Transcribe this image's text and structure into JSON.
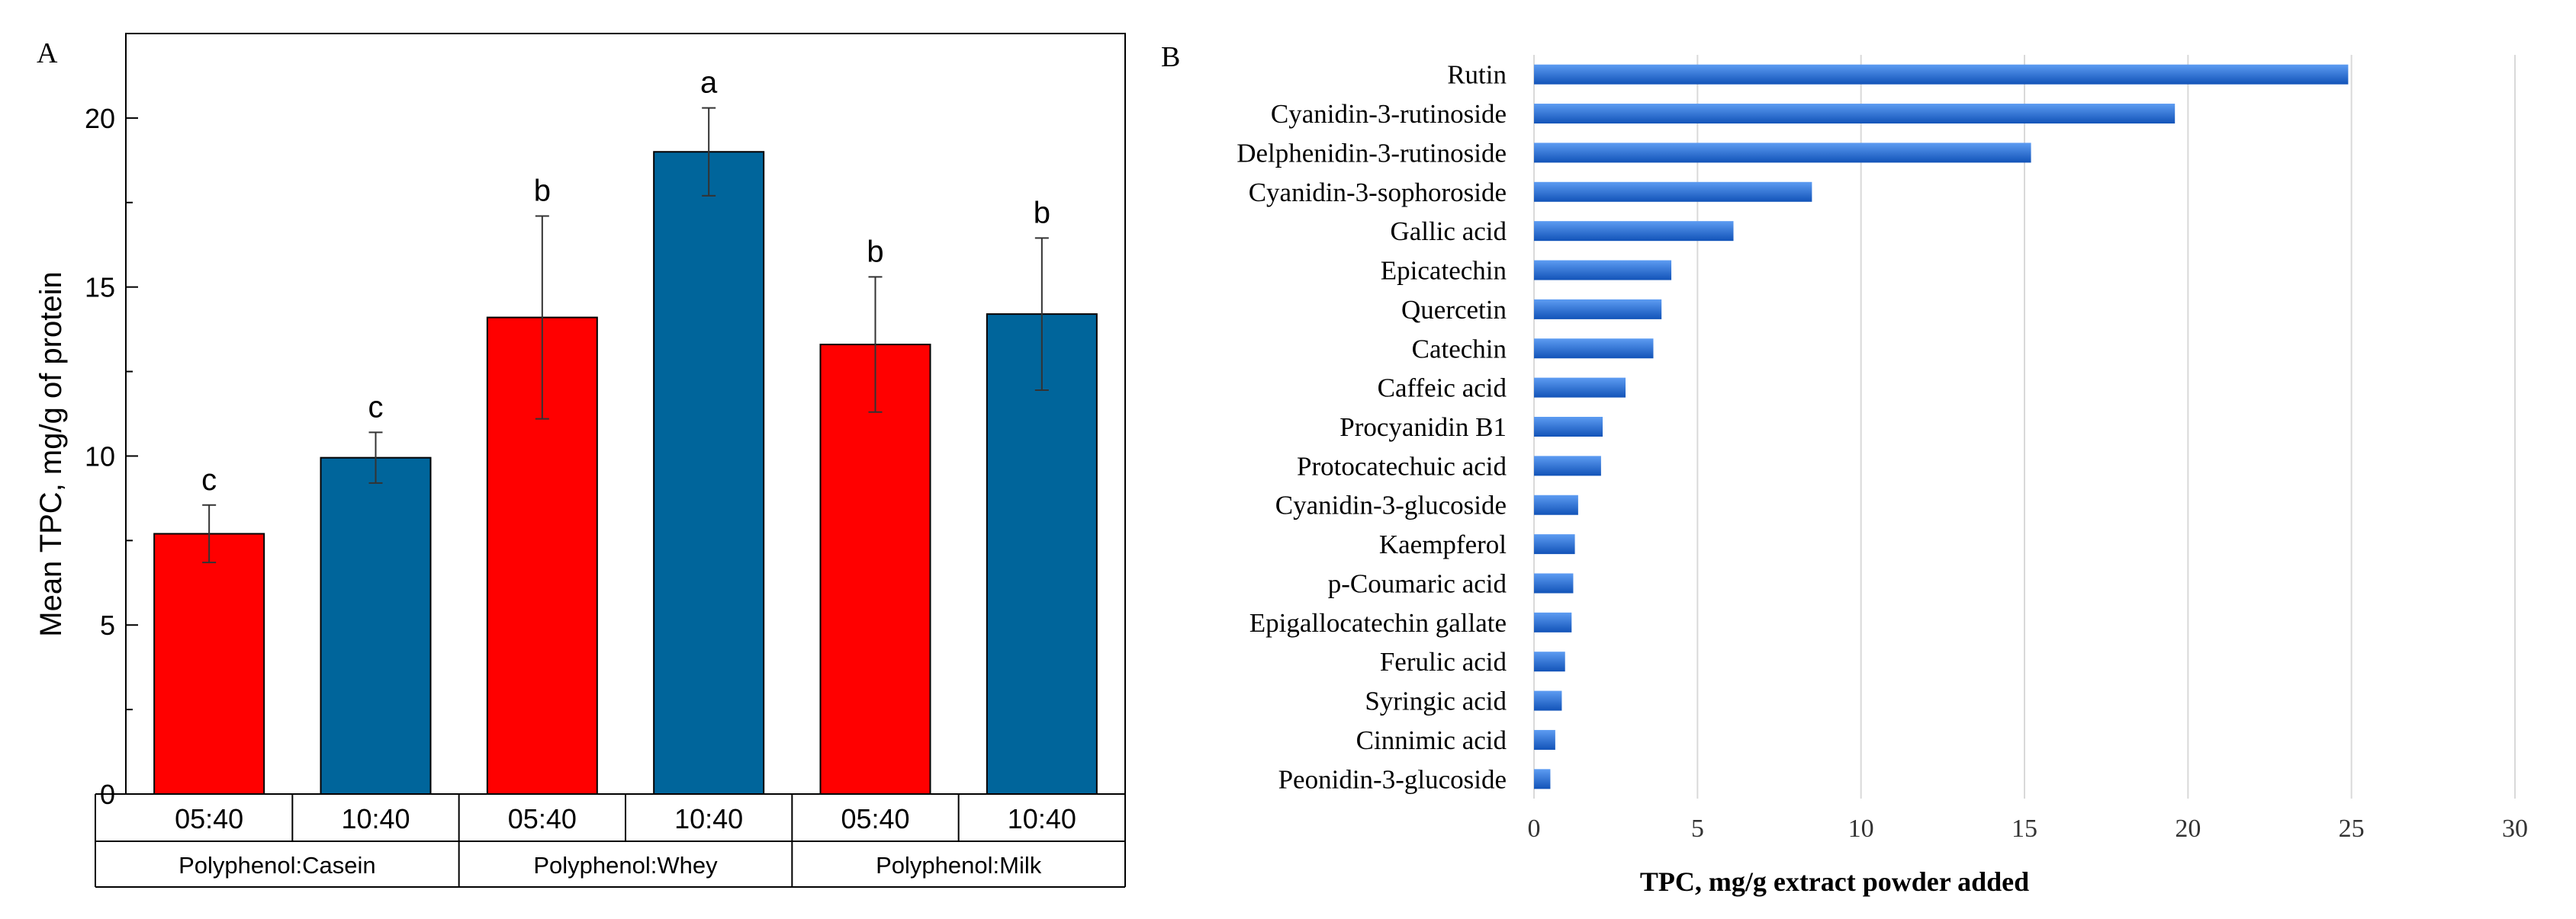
{
  "figure_labels": {
    "a": "A",
    "b": "B"
  },
  "colors": {
    "red": "#ff0000",
    "blue": "#00659b",
    "bar_b_dark": "#1253b8",
    "bar_b_light": "#5d9cf2",
    "grid": "#d9d9d9",
    "axis": "#000000"
  },
  "chart_data": [
    {
      "id": "A",
      "type": "bar",
      "title": "",
      "xlabel": "",
      "ylabel": "Mean TPC, mg/g of protein",
      "ylim": [
        0,
        22.5
      ],
      "yticks": [
        0,
        5,
        10,
        15,
        20
      ],
      "grid": false,
      "groups": [
        "Polyphenol:Casein",
        "Polyphenol:Whey",
        "Polyphenol:Milk"
      ],
      "categories": [
        "05:40",
        "10:40"
      ],
      "series_colors": [
        "#ff0000",
        "#00659b"
      ],
      "bars": [
        {
          "group": "Polyphenol:Casein",
          "category": "05:40",
          "value": 7.7,
          "err": 0.85,
          "letter": "c"
        },
        {
          "group": "Polyphenol:Casein",
          "category": "10:40",
          "value": 9.95,
          "err": 0.75,
          "letter": "c"
        },
        {
          "group": "Polyphenol:Whey",
          "category": "05:40",
          "value": 14.1,
          "err": 3.0,
          "letter": "b"
        },
        {
          "group": "Polyphenol:Whey",
          "category": "10:40",
          "value": 19.0,
          "err": 1.3,
          "letter": "a"
        },
        {
          "group": "Polyphenol:Milk",
          "category": "05:40",
          "value": 13.3,
          "err": 2.0,
          "letter": "b"
        },
        {
          "group": "Polyphenol:Milk",
          "category": "10:40",
          "value": 14.2,
          "err": 2.25,
          "letter": "b"
        }
      ]
    },
    {
      "id": "B",
      "type": "bar",
      "orientation": "horizontal",
      "title": "",
      "xlabel": "TPC, mg/g extract powder added",
      "ylabel": "",
      "xlim": [
        0,
        30
      ],
      "xticks": [
        0,
        5,
        10,
        15,
        20,
        25,
        30
      ],
      "grid": true,
      "categories": [
        "Rutin",
        "Cyanidin-3-rutinoside",
        "Delphenidin-3-rutinoside",
        "Cyanidin-3-sophoroside",
        "Gallic acid",
        "Epicatechin",
        "Quercetin",
        "Catechin",
        "Caffeic acid",
        "Procyanidin B1",
        "Protocatechuic acid",
        "Cyanidin-3-glucoside",
        "Kaempferol",
        "p-Coumaric acid",
        "Epigallocatechin gallate",
        "Ferulic acid",
        "Syringic acid",
        "Cinnimic acid",
        "Peonidin-3-glucoside"
      ],
      "values": [
        24.9,
        19.6,
        15.2,
        8.5,
        6.1,
        4.2,
        3.9,
        3.65,
        2.8,
        2.1,
        2.05,
        1.35,
        1.25,
        1.2,
        1.15,
        0.95,
        0.85,
        0.65,
        0.5
      ]
    }
  ]
}
